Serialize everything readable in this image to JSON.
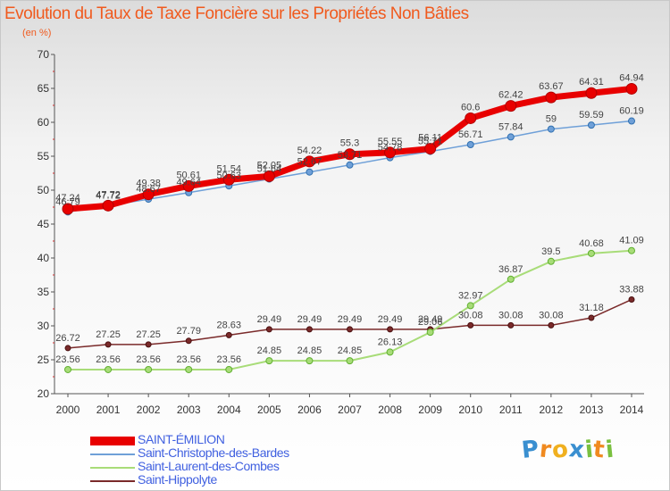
{
  "chart_data": {
    "type": "line",
    "title": "Evolution du Taux de Taxe Foncière sur les Propriétés Non Bâties",
    "subtitle": "(en %)",
    "categories": [
      "2000",
      "2001",
      "2002",
      "2003",
      "2004",
      "2005",
      "2006",
      "2007",
      "2008",
      "2009",
      "2010",
      "2011",
      "2012",
      "2013",
      "2014"
    ],
    "ylim": [
      20,
      70
    ],
    "yticks": [
      20,
      25,
      30,
      35,
      40,
      45,
      50,
      55,
      60,
      65,
      70
    ],
    "grid": false,
    "legend_position": "bottom-left",
    "series": [
      {
        "name": "SAINT-ÉMILION",
        "color": "#e80000",
        "values": [
          47.24,
          47.72,
          49.38,
          50.61,
          51.54,
          52.05,
          54.22,
          55.3,
          55.55,
          56.11,
          60.6,
          62.42,
          63.67,
          64.31,
          64.94
        ],
        "labels": [
          "47.24",
          "47.72",
          "49.38",
          "50.61",
          "51.54",
          "52.05",
          "54.22",
          "55.3",
          "55.55",
          "56.11",
          "60.6",
          "62.42",
          "63.67",
          "64.31",
          "64.94"
        ]
      },
      {
        "name": "Saint-Christophe-des-Bardes",
        "color": "#6fa0d8",
        "values": [
          46.79,
          47.72,
          48.67,
          49.64,
          50.63,
          51.64,
          52.67,
          53.71,
          54.78,
          55.71,
          56.71,
          57.84,
          59,
          59.59,
          60.19
        ],
        "labels": [
          "46.79",
          "47.72",
          "48.67",
          "49.64",
          "50.63",
          "51.64",
          "52.67",
          "53.71",
          "54.78",
          "55.71",
          "56.71",
          "57.84",
          "59",
          "59.59",
          "60.19"
        ]
      },
      {
        "name": "Saint-Laurent-des-Combes",
        "color": "#a8dc78",
        "values": [
          23.56,
          23.56,
          23.56,
          23.56,
          23.56,
          24.85,
          24.85,
          24.85,
          26.13,
          29.06,
          32.97,
          36.87,
          39.5,
          40.68,
          41.09
        ],
        "labels": [
          "23.56",
          "23.56",
          "23.56",
          "23.56",
          "23.56",
          "24.85",
          "24.85",
          "24.85",
          "26.13",
          "29.06",
          "32.97",
          "36.87",
          "39.5",
          "40.68",
          "41.09"
        ]
      },
      {
        "name": "Saint-Hippolyte",
        "color": "#7a2a2a",
        "values": [
          26.72,
          27.25,
          27.25,
          27.79,
          28.63,
          29.49,
          29.49,
          29.49,
          29.49,
          29.49,
          30.08,
          30.08,
          30.08,
          31.18,
          33.88
        ],
        "labels": [
          "26.72",
          "27.25",
          "27.25",
          "27.79",
          "28.63",
          "29.49",
          "29.49",
          "29.49",
          "29.49",
          "29.49",
          "30.08",
          "30.08",
          "30.08",
          "31.18",
          "33.88"
        ]
      }
    ]
  },
  "logo": {
    "text": "Proxiti",
    "letters": [
      "P",
      "r",
      "o",
      "x",
      "i",
      "t",
      "i"
    ],
    "colors": [
      "#3a8fd0",
      "#f08a20",
      "#f0b020",
      "#3a8fd0",
      "#7ac040",
      "#f08a20",
      "#7ac040"
    ]
  }
}
